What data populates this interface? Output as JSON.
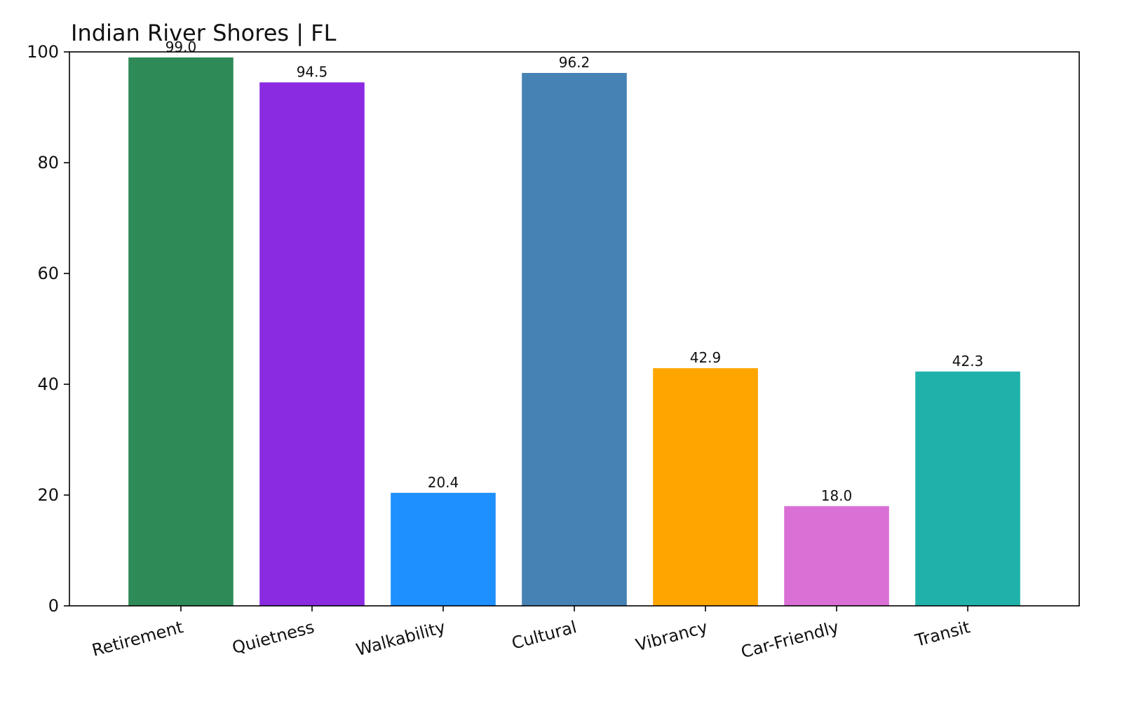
{
  "chart_data": {
    "type": "bar",
    "title": "Indian River Shores | FL",
    "xlabel": "",
    "ylabel": "",
    "categories": [
      "Retirement",
      "Quietness",
      "Walkability",
      "Cultural",
      "Vibrancy",
      "Car-Friendly",
      "Transit"
    ],
    "values": [
      99.0,
      94.5,
      20.4,
      96.2,
      42.9,
      18.0,
      42.3
    ],
    "value_labels": [
      "99.0",
      "94.5",
      "20.4",
      "96.2",
      "42.9",
      "18.0",
      "42.3"
    ],
    "colors": [
      "#2e8b57",
      "#8a2be2",
      "#1e90ff",
      "#4682b4",
      "#ffa500",
      "#da70d6",
      "#20b2aa"
    ],
    "ylim": [
      0,
      100
    ],
    "yticks": [
      0,
      20,
      40,
      60,
      80,
      100
    ],
    "grid": false,
    "legend": "none"
  }
}
